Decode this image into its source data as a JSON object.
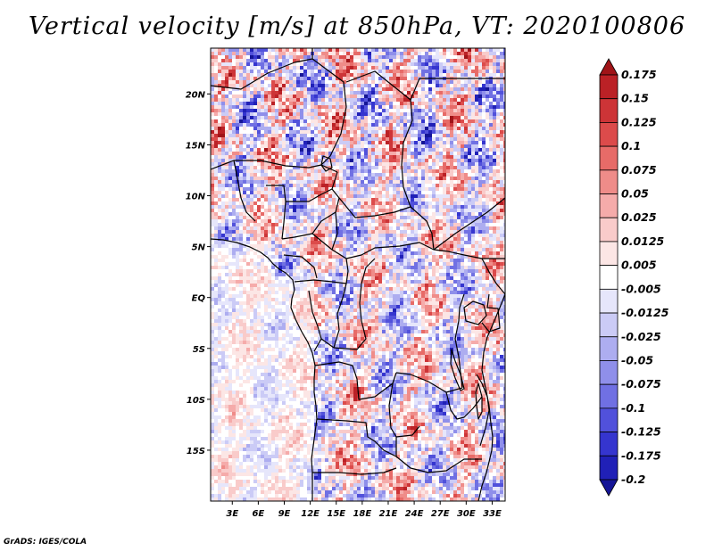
{
  "chart_data": {
    "type": "heatmap",
    "title": "Vertical velocity [m/s] at 850hPa, VT: 2020100806",
    "variable": "Vertical velocity",
    "units": "m/s",
    "level": "850hPa",
    "valid_time": "2020100806",
    "y_ticks": [
      "20N",
      "15N",
      "10N",
      "5N",
      "EQ",
      "5S",
      "10S",
      "15S"
    ],
    "y_values": [
      20,
      15,
      10,
      5,
      0,
      -5,
      -10,
      -15
    ],
    "x_ticks": [
      "3E",
      "6E",
      "9E",
      "12E",
      "15E",
      "18E",
      "21E",
      "24E",
      "27E",
      "30E",
      "33E"
    ],
    "x_values": [
      3,
      6,
      9,
      12,
      15,
      18,
      21,
      24,
      27,
      30,
      33
    ],
    "lon_range": [
      0.5,
      34.5
    ],
    "lat_range": [
      -20,
      24.5
    ],
    "colorbar_labels": [
      "0.175",
      "0.15",
      "0.125",
      "0.1",
      "0.075",
      "0.05",
      "0.025",
      "0.0125",
      "0.005",
      "-0.005",
      "-0.0125",
      "-0.025",
      "-0.05",
      "-0.075",
      "-0.1",
      "-0.125",
      "-0.175",
      "-0.2"
    ],
    "colorbar_colors": [
      "#a01418",
      "#bb2126",
      "#cd3437",
      "#dc4b4b",
      "#e76b68",
      "#ef8c89",
      "#f5abaa",
      "#f9cbca",
      "#fce6e5",
      "#ffffff",
      "#e6e6fb",
      "#cbcbf6",
      "#adadf0",
      "#8f8fea",
      "#7070e3",
      "#5151db",
      "#3535cf",
      "#2020b7",
      "#151596"
    ],
    "colorbar_extend": "both"
  },
  "footer": {
    "credit": "GrADS: IGES/COLA"
  }
}
